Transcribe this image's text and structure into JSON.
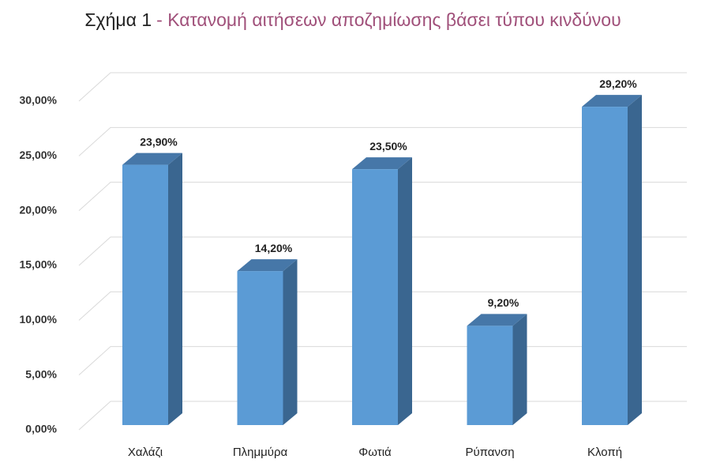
{
  "chart_data": {
    "type": "bar3d",
    "figure_label": "Σχήμα 1",
    "title": "- Κατανομή αιτήσεων αποζημίωσης βάσει τύπου κινδύνου",
    "categories": [
      "Χαλάζι",
      "Πλημμύρα",
      "Φωτιά",
      "Ρύπανση",
      "Κλοπή"
    ],
    "values": [
      23.9,
      14.2,
      23.5,
      9.2,
      29.2
    ],
    "value_labels": [
      "23,90%",
      "14,20%",
      "23,50%",
      "9,20%",
      "29,20%"
    ],
    "color": "#5b9bd5",
    "ylim": [
      0,
      30
    ],
    "yticks": [
      {
        "value": 0,
        "label": "0,00%"
      },
      {
        "value": 5,
        "label": "5,00%"
      },
      {
        "value": 10,
        "label": "10,00%"
      },
      {
        "value": 15,
        "label": "15,00%"
      },
      {
        "value": 20,
        "label": "20,00%"
      },
      {
        "value": 25,
        "label": "25,00%"
      },
      {
        "value": 30,
        "label": "30,00%"
      }
    ],
    "grid": true
  }
}
